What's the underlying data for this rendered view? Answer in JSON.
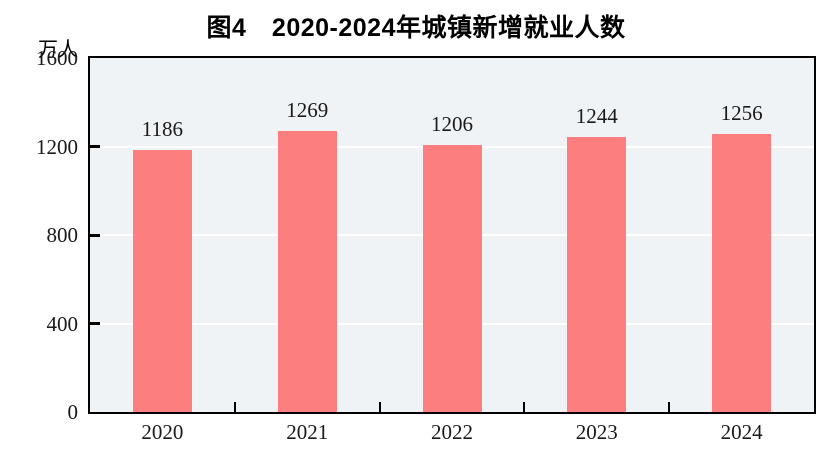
{
  "page": {
    "title": "图4　2020-2024年城镇新增就业人数",
    "unit_label": "万人"
  },
  "chart_data": {
    "type": "bar",
    "title": "图4　2020-2024年城镇新增就业人数",
    "unit": "万人",
    "categories": [
      "2020",
      "2021",
      "2022",
      "2023",
      "2024"
    ],
    "values": [
      1186,
      1269,
      1206,
      1244,
      1256
    ],
    "xlabel": "",
    "ylabel": "万人",
    "ylim": [
      0,
      1600
    ],
    "yticks": [
      0,
      400,
      800,
      1200,
      1600
    ],
    "grid": true,
    "legend": "none",
    "colors": {
      "bar": "#FC7E7E",
      "plot_bg": "#EFF3F6",
      "grid": "#FFFFFF",
      "axis": "#000000",
      "text": "#1a1a1a"
    }
  }
}
